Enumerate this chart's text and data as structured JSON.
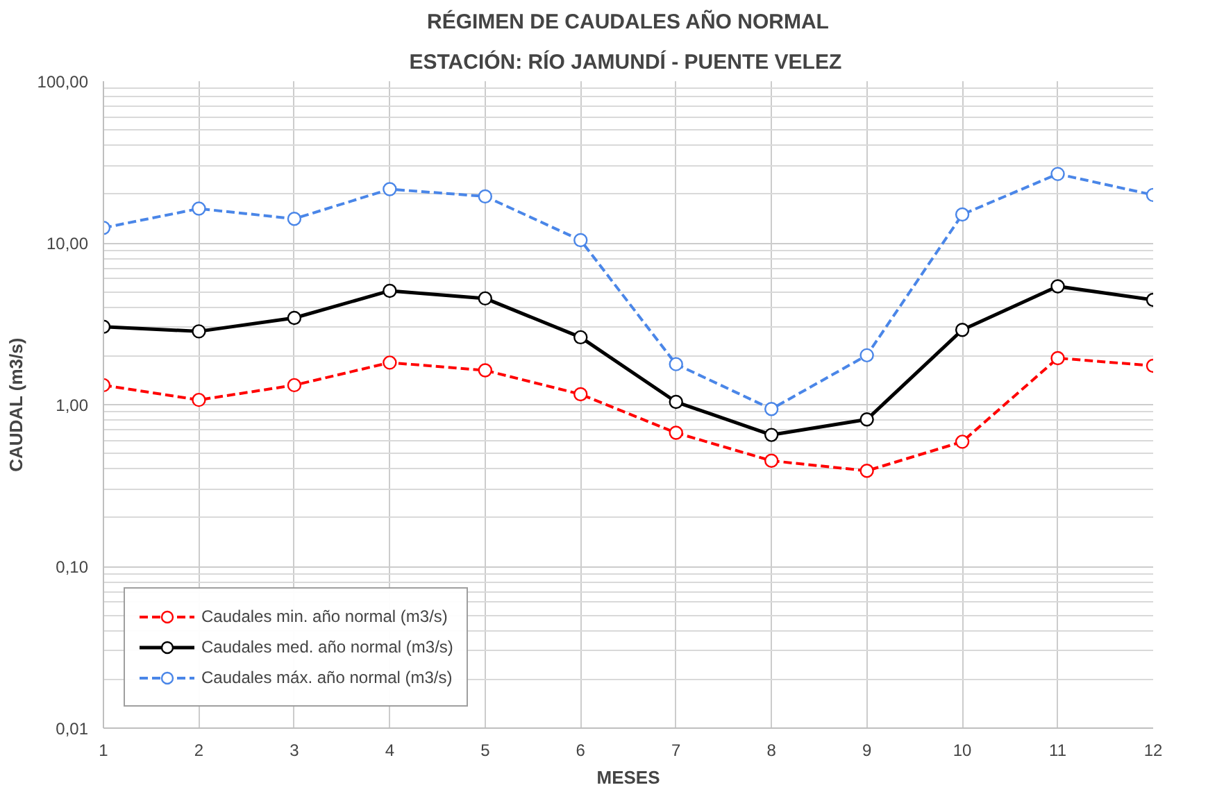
{
  "chart_data": {
    "type": "line",
    "title": "RÉGIMEN DE CAUDALES AÑO NORMAL",
    "subtitle": "ESTACIÓN: RÍO JAMUNDÍ -  PUENTE VELEZ",
    "xlabel": "MESES",
    "ylabel": "CAUDAL (m3/s)",
    "x": [
      1,
      2,
      3,
      4,
      5,
      6,
      7,
      8,
      9,
      10,
      11,
      12
    ],
    "series": [
      {
        "name": "Caudales min. año normal (m3/s)",
        "color": "#ff0000",
        "line_style": "dashed",
        "values": [
          1.32,
          1.07,
          1.32,
          1.82,
          1.63,
          1.16,
          0.67,
          0.45,
          0.39,
          0.59,
          1.94,
          1.74
        ]
      },
      {
        "name": "Caudales med. año normal (m3/s)",
        "color": "#000000",
        "line_style": "solid",
        "values": [
          3.03,
          2.84,
          3.44,
          5.06,
          4.54,
          2.61,
          1.04,
          0.65,
          0.81,
          2.9,
          5.39,
          4.45
        ]
      },
      {
        "name": "Caudales máx. año normal (m3/s)",
        "color": "#4a86e8",
        "line_style": "dashed",
        "values": [
          12.4,
          16.3,
          14.1,
          21.5,
          19.4,
          10.4,
          1.78,
          0.94,
          2.02,
          15.0,
          26.7,
          19.8
        ]
      }
    ],
    "log": "y",
    "xlim": [
      1,
      12
    ],
    "xticks": [
      1,
      2,
      3,
      4,
      5,
      6,
      7,
      8,
      9,
      10,
      11,
      12
    ],
    "ylim": [
      0.01,
      100
    ],
    "yticks": [
      {
        "value": 0.01,
        "label": "0,01"
      },
      {
        "value": 0.1,
        "label": "0,10"
      },
      {
        "value": 1,
        "label": "1,00"
      },
      {
        "value": 10,
        "label": "10,00"
      },
      {
        "value": 100,
        "label": "100,00"
      }
    ],
    "grid": true,
    "legend": "bottom left",
    "marker": "circle"
  }
}
